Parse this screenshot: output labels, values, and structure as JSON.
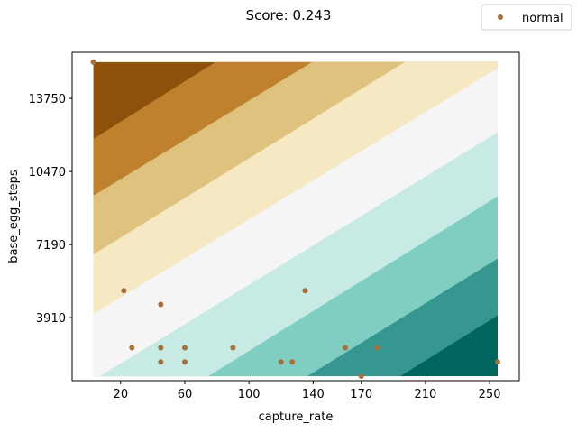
{
  "chart_data": {
    "type": "scatter",
    "title": "Score: 0.243",
    "xlabel": "capture_rate",
    "ylabel": "base_egg_steps",
    "xlim": [
      -10.25,
      268.5
    ],
    "ylim": [
      1080,
      15820
    ],
    "xticks": [
      20,
      60,
      100,
      140,
      170,
      210,
      250
    ],
    "yticks": [
      3910,
      7190,
      10470,
      13750
    ],
    "grid": false,
    "legend": {
      "position": "top-right",
      "entries": [
        "normal"
      ]
    },
    "series": [
      {
        "name": "normal",
        "color": "#a6703f",
        "points": [
          [
            3,
            15380
          ],
          [
            22,
            5120
          ],
          [
            45,
            4500
          ],
          [
            27,
            2560
          ],
          [
            45,
            2560
          ],
          [
            60,
            2560
          ],
          [
            90,
            2560
          ],
          [
            45,
            1920
          ],
          [
            60,
            1920
          ],
          [
            120,
            1920
          ],
          [
            127,
            1920
          ],
          [
            135,
            5120
          ],
          [
            160,
            2560
          ],
          [
            180,
            2560
          ],
          [
            170,
            1280
          ],
          [
            255,
            1920
          ]
        ]
      }
    ],
    "background_bands": {
      "type": "decision-contours",
      "x_range": [
        3,
        255
      ],
      "y_range": [
        1280,
        15380
      ],
      "colors": [
        "#01665e",
        "#35978f",
        "#80cdc1",
        "#c7eae5",
        "#f5f5f5",
        "#f6e8c3",
        "#dfc27d",
        "#bf812d",
        "#8c510a"
      ],
      "levels": [
        {
          "x_top": 3,
          "x_bottom": 3
        },
        {
          "x_top": 3,
          "x_bottom": 3
        },
        {
          "x_top": 3,
          "x_bottom": 3
        },
        {
          "x_top": 3,
          "x_bottom": 3
        },
        {
          "x_top": 3,
          "x_bottom": 3
        },
        {
          "x_top": 3,
          "x_bottom": 3
        },
        {
          "x_top": 3,
          "x_bottom": 3
        },
        {
          "x_top": 3,
          "x_bottom": 3
        }
      ]
    }
  }
}
